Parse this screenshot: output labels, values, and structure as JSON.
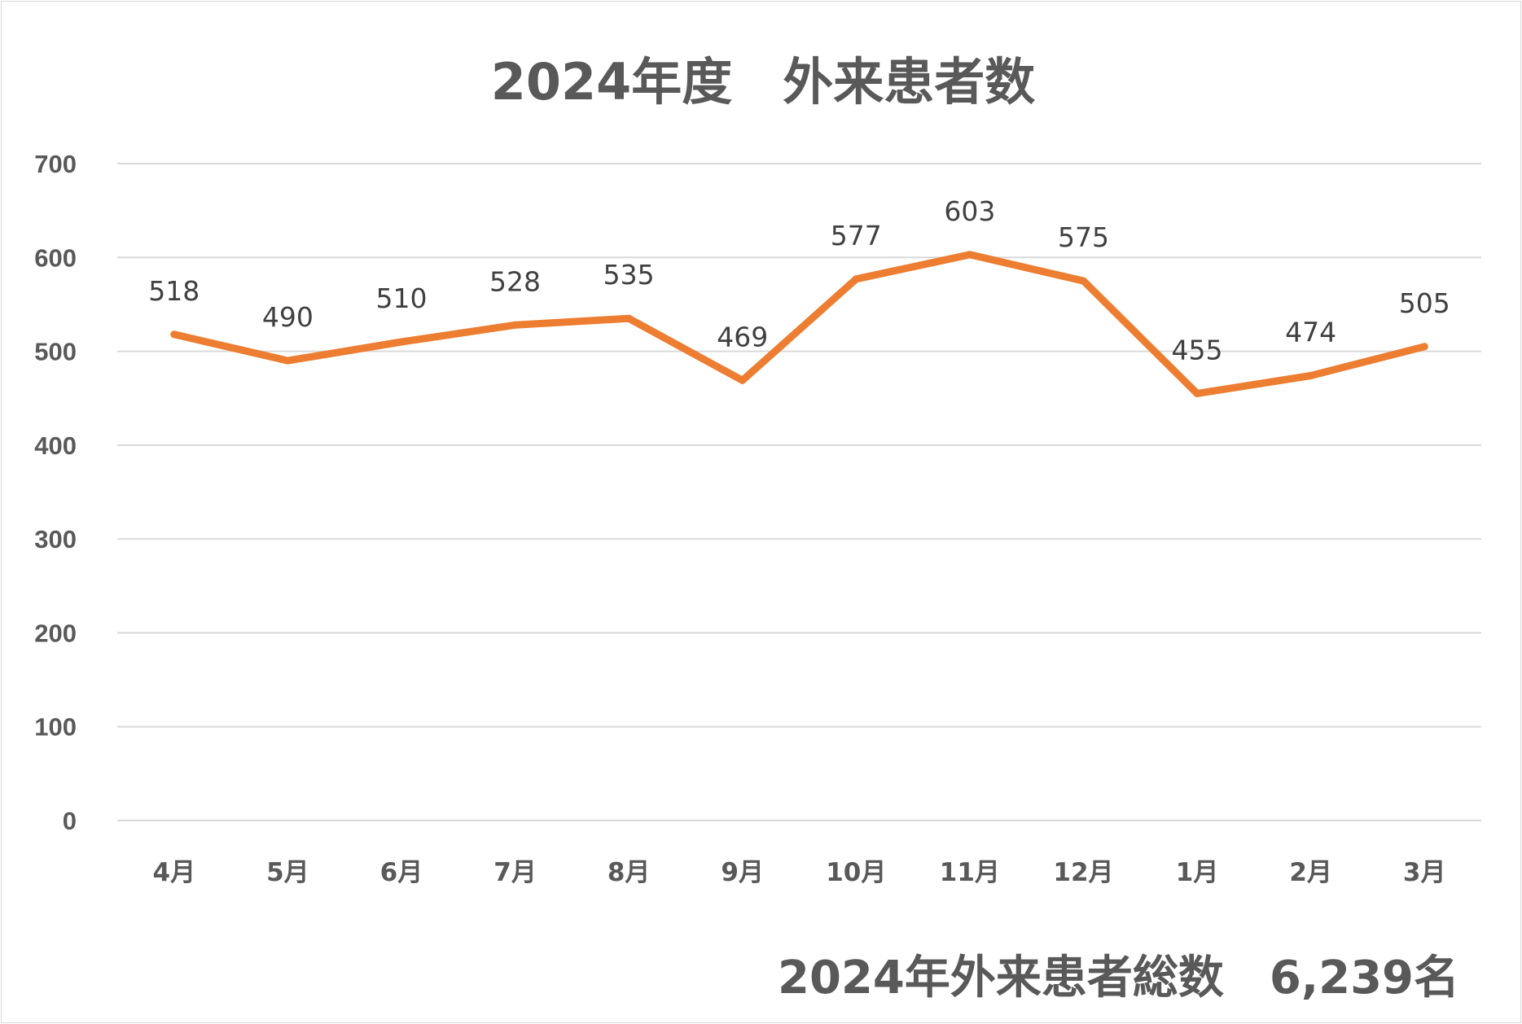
{
  "chart_data": {
    "type": "line",
    "title": "2024年度　外来患者数",
    "categories": [
      "4月",
      "5月",
      "6月",
      "7月",
      "8月",
      "9月",
      "10月",
      "11月",
      "12月",
      "1月",
      "2月",
      "3月"
    ],
    "series": [
      {
        "values": [
          518,
          490,
          510,
          528,
          535,
          469,
          577,
          603,
          575,
          455,
          474,
          505
        ]
      }
    ],
    "ylim": [
      0,
      700
    ],
    "yticks": [
      0,
      100,
      200,
      300,
      400,
      500,
      600,
      700
    ],
    "grid": true,
    "legend": "none",
    "data_labels": true,
    "line_color": "#ED7D31",
    "footer": "2024年外来患者総数　6,239名"
  }
}
